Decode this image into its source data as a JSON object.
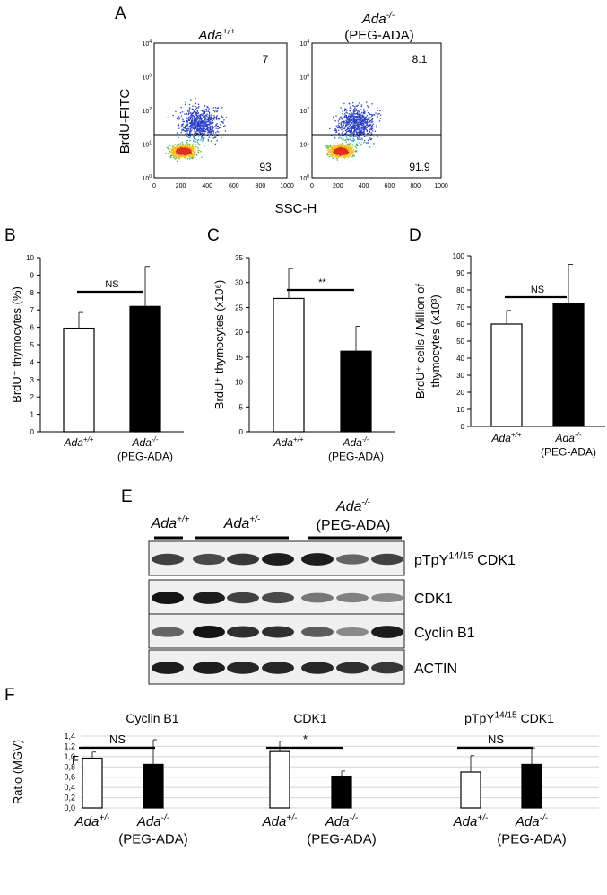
{
  "panel_letters": {
    "A": "A",
    "B": "B",
    "C": "C",
    "D": "D",
    "E": "E",
    "F": "F"
  },
  "flow": {
    "titles": [
      {
        "main": "Ada",
        "sup": "+/+",
        "sub": ""
      },
      {
        "main": "Ada",
        "sup": "-/-",
        "sub": "(PEG-ADA)"
      }
    ],
    "ylabel": "BrdU-FITC",
    "xlabel": "SSC-H",
    "x_ticks": [
      "0",
      "200",
      "400",
      "600",
      "800",
      "1000"
    ],
    "y_ticks": [
      {
        "base": "10",
        "exp": "4"
      },
      {
        "base": "10",
        "exp": "3"
      },
      {
        "base": "10",
        "exp": "2"
      },
      {
        "base": "10",
        "exp": "1"
      },
      {
        "base": "10",
        "exp": "0"
      }
    ],
    "quadrants": [
      {
        "upper": "7",
        "lower": "93"
      },
      {
        "upper": "8.1",
        "lower": "91.9"
      }
    ]
  },
  "chart_data": [
    {
      "panel": "B",
      "type": "bar",
      "ylabel": "BrdU⁺ thymocytes (%)",
      "categories": [
        {
          "main": "Ada",
          "sup": "+/+",
          "sub": ""
        },
        {
          "main": "Ada",
          "sup": "-/-",
          "sub": "(PEG-ADA)"
        }
      ],
      "values": [
        5.95,
        7.2
      ],
      "errors": [
        0.9,
        2.3
      ],
      "fills": [
        "#ffffff",
        "#000000"
      ],
      "ylim": [
        0,
        10
      ],
      "yticks": [
        0,
        1,
        2,
        3,
        4,
        5,
        6,
        7,
        8,
        9,
        10
      ],
      "decimal_comma": false,
      "sig": "NS"
    },
    {
      "panel": "C",
      "type": "bar",
      "ylabel": "BrdU⁺ thymocytes (x10⁶)",
      "categories": [
        {
          "main": "Ada",
          "sup": "+/+",
          "sub": ""
        },
        {
          "main": "Ada",
          "sup": "-/-",
          "sub": "(PEG-ADA)"
        }
      ],
      "values": [
        26.8,
        16.2
      ],
      "errors": [
        6.0,
        5.0
      ],
      "fills": [
        "#ffffff",
        "#000000"
      ],
      "ylim": [
        0,
        35
      ],
      "yticks": [
        0,
        5,
        10,
        15,
        20,
        25,
        30,
        35
      ],
      "decimal_comma": false,
      "sig": "**"
    },
    {
      "panel": "D",
      "type": "bar",
      "ylabel": "BrdU⁺ cells / Million of thymocytes (x10³)",
      "ylabel_lines": [
        "BrdU⁺ cells / Million of",
        "thymocytes (x10³)"
      ],
      "categories": [
        {
          "main": "Ada",
          "sup": "+/+",
          "sub": ""
        },
        {
          "main": "Ada",
          "sup": "-/-",
          "sub": "(PEG-ADA)"
        }
      ],
      "values": [
        60,
        72
      ],
      "errors": [
        8,
        23
      ],
      "fills": [
        "#ffffff",
        "#000000"
      ],
      "ylim": [
        0,
        100
      ],
      "yticks": [
        0,
        10,
        20,
        30,
        40,
        50,
        60,
        70,
        80,
        90,
        100
      ],
      "decimal_comma": false,
      "sig": "NS"
    },
    {
      "panel": "F1",
      "type": "bar",
      "title": "Cyclin B1",
      "ylabel": "Ratio (MGV)",
      "categories": [
        {
          "main": "Ada",
          "sup": "+/-",
          "sub": ""
        },
        {
          "main": "Ada",
          "sup": "-/-",
          "sub": "(PEG-ADA)"
        }
      ],
      "values": [
        0.97,
        0.85
      ],
      "errors": [
        0.12,
        0.48
      ],
      "fills": [
        "#ffffff",
        "#000000"
      ],
      "ylim": [
        0,
        1.4
      ],
      "yticks": [
        0,
        0.2,
        0.4,
        0.6,
        0.8,
        1.0,
        1.2,
        1.4
      ],
      "decimal_comma": true,
      "sig": "NS"
    },
    {
      "panel": "F2",
      "type": "bar",
      "title": "CDK1",
      "categories": [
        {
          "main": "Ada",
          "sup": "+/-",
          "sub": ""
        },
        {
          "main": "Ada",
          "sup": "-/-",
          "sub": "(PEG-ADA)"
        }
      ],
      "values": [
        1.1,
        0.62
      ],
      "errors": [
        0.2,
        0.1
      ],
      "fills": [
        "#ffffff",
        "#000000"
      ],
      "ylim": [
        0,
        1.4
      ],
      "sig": "*"
    },
    {
      "panel": "F3",
      "type": "bar",
      "title": {
        "main": "pTpY",
        "sup": "14/15",
        "rest": " CDK1"
      },
      "categories": [
        {
          "main": "Ada",
          "sup": "+/-",
          "sub": ""
        },
        {
          "main": "Ada",
          "sup": "-/-",
          "sub": "(PEG-ADA)"
        }
      ],
      "values": [
        0.7,
        0.85
      ],
      "errors": [
        0.32,
        0.32
      ],
      "fills": [
        "#ffffff",
        "#000000"
      ],
      "ylim": [
        0,
        1.4
      ],
      "sig": "NS"
    }
  ],
  "western": {
    "groups": [
      {
        "main": "Ada",
        "sup": "+/+",
        "sub": ""
      },
      {
        "main": "Ada",
        "sup": "+/-",
        "sub": ""
      },
      {
        "main": "Ada",
        "sup": "-/-",
        "sub": "(PEG-ADA)"
      }
    ],
    "rows": [
      {
        "main": "pTpY",
        "sup": "14/15",
        "rest": " CDK1",
        "intensity": [
          0.75,
          0.7,
          0.8,
          0.95,
          0.95,
          0.55,
          0.75
        ]
      },
      {
        "main": "CDK1",
        "sup": "",
        "rest": "",
        "intensity": [
          1.0,
          0.95,
          0.75,
          0.7,
          0.45,
          0.4,
          0.35
        ]
      },
      {
        "main": "Cyclin B1",
        "sup": "",
        "rest": "",
        "intensity": [
          0.55,
          1.0,
          0.85,
          0.85,
          0.6,
          0.35,
          0.95
        ]
      },
      {
        "main": "ACTIN",
        "sup": "",
        "rest": "",
        "intensity": [
          0.95,
          0.95,
          0.9,
          0.9,
          0.9,
          0.85,
          0.8
        ]
      }
    ]
  }
}
